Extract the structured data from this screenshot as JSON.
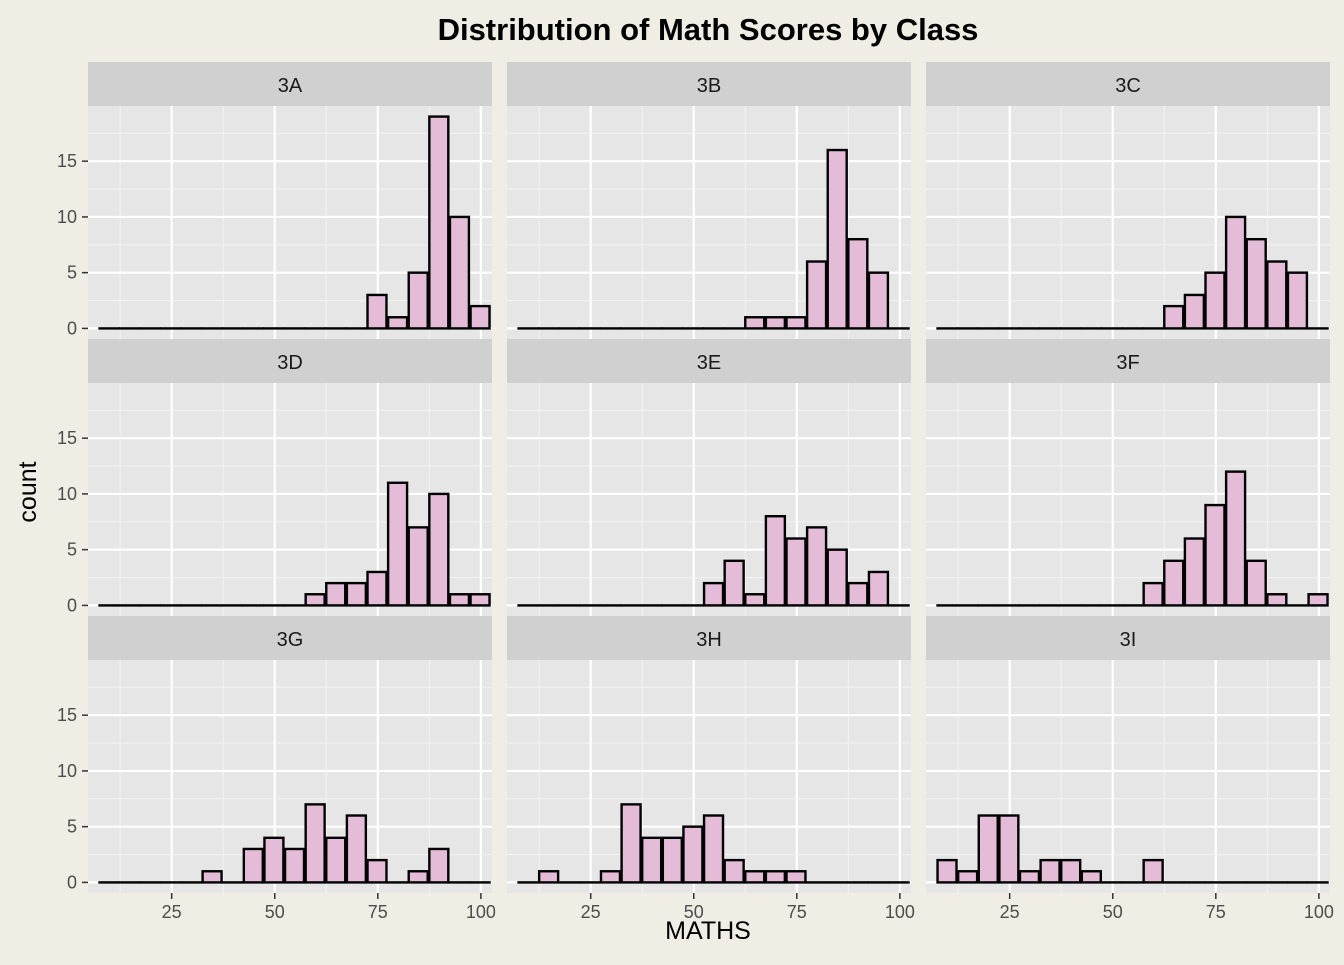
{
  "chart_data": {
    "type": "bar",
    "title": "Distribution of Math Scores by Class",
    "xlabel": "MATHS",
    "ylabel": "count",
    "xlim": [
      4.7,
      102.7
    ],
    "ylim": [
      -0.95,
      19.95
    ],
    "x_ticks": [
      25,
      50,
      75,
      100
    ],
    "y_ticks": [
      0,
      5,
      10,
      15
    ],
    "grid": true,
    "fill_color": "#e4bcd8",
    "edge_color": "#000000",
    "panel_bg": "#e6e6e6",
    "strip_bg": "#d0d0d0",
    "bins": [
      9.8,
      14.8,
      19.8,
      24.8,
      29.8,
      34.8,
      39.8,
      44.8,
      49.8,
      54.8,
      59.8,
      64.8,
      69.8,
      74.8,
      79.8,
      84.8,
      89.8,
      94.8,
      99.8
    ],
    "bin_width": 4.6,
    "panels": [
      {
        "name": "3A",
        "counts": [
          0,
          0,
          0,
          0,
          0,
          0,
          0,
          0,
          0,
          0,
          0,
          0,
          0,
          3,
          1,
          5,
          19,
          10,
          2
        ]
      },
      {
        "name": "3B",
        "counts": [
          0,
          0,
          0,
          0,
          0,
          0,
          0,
          0,
          0,
          0,
          0,
          1,
          1,
          1,
          6,
          16,
          8,
          5,
          0
        ]
      },
      {
        "name": "3C",
        "counts": [
          0,
          0,
          0,
          0,
          0,
          0,
          0,
          0,
          0,
          0,
          0,
          2,
          3,
          5,
          10,
          8,
          6,
          5,
          0
        ]
      },
      {
        "name": "3D",
        "counts": [
          0,
          0,
          0,
          0,
          0,
          0,
          0,
          0,
          0,
          0,
          1,
          2,
          2,
          3,
          11,
          7,
          10,
          1,
          1
        ]
      },
      {
        "name": "3E",
        "counts": [
          0,
          0,
          0,
          0,
          0,
          0,
          0,
          0,
          0,
          2,
          4,
          1,
          8,
          6,
          7,
          5,
          2,
          3,
          0
        ]
      },
      {
        "name": "3F",
        "counts": [
          0,
          0,
          0,
          0,
          0,
          0,
          0,
          0,
          0,
          0,
          2,
          4,
          6,
          9,
          12,
          4,
          1,
          0,
          1
        ]
      },
      {
        "name": "3G",
        "counts": [
          0,
          0,
          0,
          0,
          0,
          1,
          0,
          3,
          4,
          3,
          7,
          4,
          6,
          2,
          0,
          1,
          3,
          0,
          0
        ]
      },
      {
        "name": "3H",
        "counts": [
          0,
          1,
          0,
          0,
          1,
          7,
          4,
          4,
          5,
          6,
          2,
          1,
          1,
          1,
          0,
          0,
          0,
          0,
          0
        ]
      },
      {
        "name": "3I",
        "counts": [
          2,
          1,
          6,
          6,
          1,
          2,
          2,
          1,
          0,
          0,
          2,
          0,
          0,
          0,
          0,
          0,
          0,
          0,
          0
        ]
      }
    ]
  }
}
